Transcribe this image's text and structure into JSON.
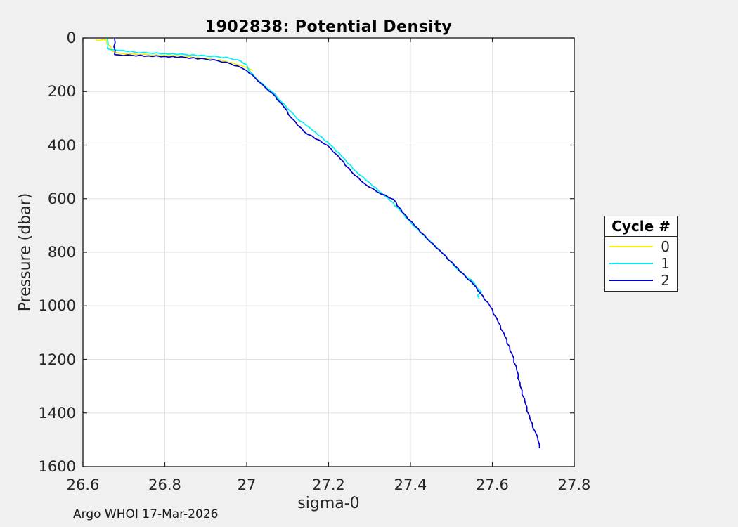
{
  "figure": {
    "background_color": "#F0F0F0",
    "plot_background_color": "#FFFFFF",
    "axis_color": "#262626",
    "grid_color": "#E2E2E2"
  },
  "chart": {
    "title": "1902838: Potential Density",
    "xlabel": "sigma-0",
    "ylabel": "Pressure (dbar)"
  },
  "legend": {
    "title": "Cycle #"
  },
  "footer": {
    "text": "Argo WHOI 17-Mar-2026"
  },
  "chart_data": {
    "type": "line",
    "title": "1902838: Potential Density",
    "xlabel": "sigma-0",
    "ylabel": "Pressure (dbar)",
    "xlim": [
      26.6,
      27.8
    ],
    "ylim": [
      0,
      1600
    ],
    "y_axis_reversed": true,
    "grid": true,
    "legend_title": "Cycle #",
    "legend_position": "right-outside",
    "xticks": [
      26.6,
      26.8,
      27.0,
      27.2,
      27.4,
      27.6,
      27.8
    ],
    "xtick_labels": [
      "26.6",
      "26.8",
      "27",
      "27.2",
      "27.4",
      "27.6",
      "27.8"
    ],
    "yticks": [
      0,
      200,
      400,
      600,
      800,
      1000,
      1200,
      1400,
      1600
    ],
    "ytick_labels": [
      "0",
      "200",
      "400",
      "600",
      "800",
      "1000",
      "1200",
      "1400",
      "1600"
    ],
    "series": [
      {
        "name": "0",
        "color": "#F8F000",
        "points_format": "[sigma0, pressure_dbar]",
        "points": [
          [
            26.631,
            8
          ],
          [
            26.657,
            8
          ],
          [
            26.659,
            24
          ],
          [
            26.668,
            32
          ],
          [
            26.671,
            48
          ],
          [
            26.686,
            56
          ],
          [
            26.7,
            59
          ],
          [
            26.73,
            61
          ],
          [
            26.76,
            63
          ],
          [
            26.8,
            65
          ],
          [
            26.84,
            68
          ],
          [
            26.88,
            73
          ],
          [
            26.915,
            79
          ],
          [
            26.945,
            86
          ],
          [
            26.965,
            93
          ],
          [
            26.985,
            102
          ],
          [
            27.0,
            110
          ],
          [
            27.015,
            121
          ]
        ]
      },
      {
        "name": "1",
        "color": "#00F0F0",
        "points_format": "[sigma0, pressure_dbar]",
        "points": [
          [
            26.66,
            2
          ],
          [
            26.66,
            40
          ],
          [
            26.676,
            44
          ],
          [
            26.7,
            47
          ],
          [
            26.726,
            53
          ],
          [
            26.76,
            56
          ],
          [
            26.8,
            58
          ],
          [
            26.85,
            62
          ],
          [
            26.9,
            67
          ],
          [
            26.93,
            70
          ],
          [
            26.96,
            76
          ],
          [
            26.985,
            86
          ],
          [
            27.0,
            100
          ],
          [
            27.005,
            121
          ],
          [
            27.022,
            150
          ],
          [
            27.042,
            176
          ],
          [
            27.062,
            200
          ],
          [
            27.086,
            240
          ],
          [
            27.106,
            272
          ],
          [
            27.122,
            300
          ],
          [
            27.152,
            332
          ],
          [
            27.168,
            352
          ],
          [
            27.205,
            400
          ],
          [
            27.232,
            442
          ],
          [
            27.268,
            500
          ],
          [
            27.3,
            540
          ],
          [
            27.33,
            580
          ],
          [
            27.35,
            606
          ],
          [
            27.376,
            646
          ],
          [
            27.402,
            692
          ],
          [
            27.432,
            736
          ],
          [
            27.476,
            800
          ],
          [
            27.506,
            850
          ],
          [
            27.532,
            886
          ],
          [
            27.548,
            902
          ],
          [
            27.562,
            932
          ],
          [
            27.574,
            948
          ],
          [
            27.564,
            960
          ],
          [
            27.568,
            973
          ]
        ]
      },
      {
        "name": "2",
        "color": "#0000CC",
        "points_format": "[sigma0, pressure_dbar]",
        "points": [
          [
            26.677,
            2
          ],
          [
            26.677,
            62
          ],
          [
            26.69,
            64
          ],
          [
            26.72,
            65
          ],
          [
            26.76,
            67
          ],
          [
            26.8,
            69
          ],
          [
            26.85,
            73
          ],
          [
            26.9,
            79
          ],
          [
            26.93,
            85
          ],
          [
            26.96,
            96
          ],
          [
            26.988,
            112
          ],
          [
            27.0,
            122
          ],
          [
            27.02,
            148
          ],
          [
            27.046,
            186
          ],
          [
            27.062,
            206
          ],
          [
            27.09,
            256
          ],
          [
            27.11,
            300
          ],
          [
            27.14,
            350
          ],
          [
            27.196,
            400
          ],
          [
            27.228,
            450
          ],
          [
            27.256,
            500
          ],
          [
            27.288,
            544
          ],
          [
            27.318,
            574
          ],
          [
            27.358,
            602
          ],
          [
            27.38,
            650
          ],
          [
            27.41,
            700
          ],
          [
            27.44,
            748
          ],
          [
            27.478,
            804
          ],
          [
            27.508,
            850
          ],
          [
            27.534,
            890
          ],
          [
            27.554,
            920
          ],
          [
            27.57,
            952
          ],
          [
            27.594,
            1000
          ],
          [
            27.614,
            1060
          ],
          [
            27.63,
            1112
          ],
          [
            27.648,
            1180
          ],
          [
            27.66,
            1242
          ],
          [
            27.668,
            1300
          ],
          [
            27.68,
            1362
          ],
          [
            27.692,
            1424
          ],
          [
            27.704,
            1468
          ],
          [
            27.712,
            1504
          ],
          [
            27.715,
            1532
          ]
        ]
      }
    ]
  }
}
